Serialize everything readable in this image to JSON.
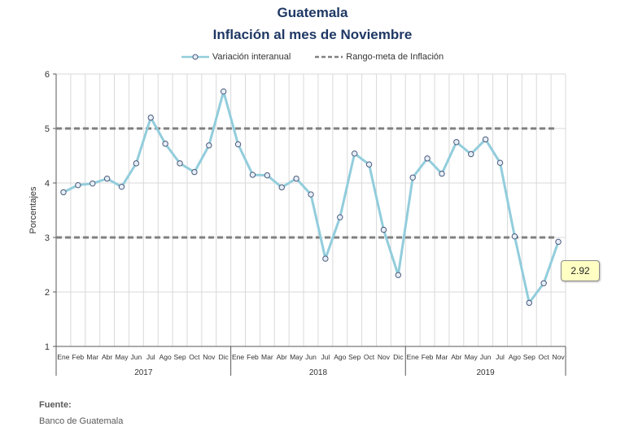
{
  "chart_data": {
    "type": "line",
    "title": "Guatemala",
    "subtitle": "Inflación al mes de Noviembre",
    "ylabel": "Porcentajes",
    "xlabel": "",
    "ylim": [
      1,
      6
    ],
    "yticks": [
      "1",
      "2",
      "3",
      "4",
      "5",
      "6"
    ],
    "grid": true,
    "legend_position": "top",
    "categories": [
      "Ene",
      "Feb",
      "Mar",
      "Abr",
      "May",
      "Jun",
      "Jul",
      "Ago",
      "Sep",
      "Oct",
      "Nov",
      "Dic",
      "Ene",
      "Feb",
      "Mar",
      "Abr",
      "May",
      "Jun",
      "Jul",
      "Ago",
      "Sep",
      "Oct",
      "Nov",
      "Dic",
      "Ene",
      "Feb",
      "Mar",
      "Abr",
      "May",
      "Jun",
      "Jul",
      "Ago",
      "Sep",
      "Oct",
      "Nov"
    ],
    "years": [
      "2017",
      "2018",
      "2019"
    ],
    "series": [
      {
        "name": "Variación interanual",
        "color": "#92cddc",
        "values": [
          3.83,
          3.96,
          3.99,
          4.08,
          3.93,
          4.36,
          5.2,
          4.72,
          4.36,
          4.2,
          4.69,
          5.68,
          4.71,
          4.15,
          4.14,
          3.92,
          4.08,
          3.79,
          2.61,
          3.37,
          4.54,
          4.34,
          3.14,
          2.31,
          4.1,
          4.45,
          4.17,
          4.75,
          4.53,
          4.8,
          4.37,
          3.02,
          1.8,
          2.16,
          2.92
        ]
      },
      {
        "name": "Rango-meta de Inflación",
        "color": "#808080",
        "lines": [
          3,
          5
        ]
      }
    ],
    "annotation": "2.92"
  },
  "source": {
    "label": "Fuente:",
    "text": "Banco de Guatemala"
  }
}
